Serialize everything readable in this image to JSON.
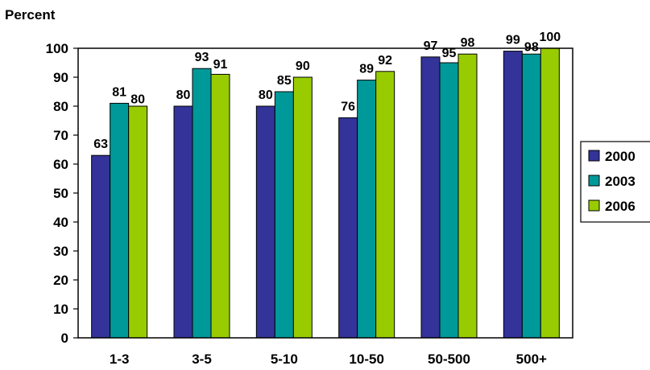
{
  "chart_data": {
    "type": "bar",
    "ylabel": "Percent",
    "xlabel": "",
    "title": "",
    "categories": [
      "1-3",
      "3-5",
      "5-10",
      "10-50",
      "50-500",
      "500+"
    ],
    "series": [
      {
        "name": "2000",
        "values": [
          63,
          80,
          80,
          76,
          97,
          99
        ],
        "color": "#333399"
      },
      {
        "name": "2003",
        "values": [
          81,
          93,
          85,
          89,
          95,
          98
        ],
        "color": "#009999"
      },
      {
        "name": "2006",
        "values": [
          80,
          91,
          90,
          92,
          98,
          100
        ],
        "color": "#99CC00"
      }
    ],
    "ylim": [
      0,
      100
    ],
    "yticks": [
      0,
      10,
      20,
      30,
      40,
      50,
      60,
      70,
      80,
      90,
      100
    ],
    "grid": false,
    "legend_position": "right",
    "data_labels": true
  }
}
